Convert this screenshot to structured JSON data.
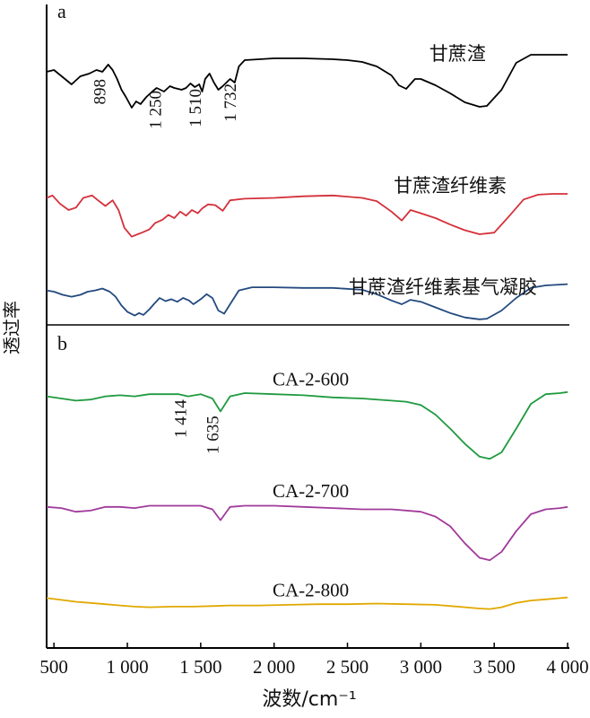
{
  "chart_data": [
    {
      "panel_label": "a",
      "type": "line",
      "ylabel": "透过率",
      "xlim": [
        450,
        4000
      ],
      "series": [
        {
          "name": "甘蔗渣",
          "color": "#000000",
          "points": [
            [
              450,
              0.8
            ],
            [
              500,
              0.82
            ],
            [
              560,
              0.74
            ],
            [
              620,
              0.66
            ],
            [
              680,
              0.75
            ],
            [
              740,
              0.78
            ],
            [
              790,
              0.82
            ],
            [
              830,
              0.8
            ],
            [
              870,
              0.88
            ],
            [
              900,
              0.82
            ],
            [
              930,
              0.72
            ],
            [
              960,
              0.6
            ],
            [
              990,
              0.52
            ],
            [
              1030,
              0.4
            ],
            [
              1060,
              0.47
            ],
            [
              1090,
              0.44
            ],
            [
              1130,
              0.52
            ],
            [
              1170,
              0.58
            ],
            [
              1200,
              0.62
            ],
            [
              1250,
              0.58
            ],
            [
              1290,
              0.64
            ],
            [
              1320,
              0.62
            ],
            [
              1370,
              0.6
            ],
            [
              1400,
              0.62
            ],
            [
              1430,
              0.67
            ],
            [
              1460,
              0.63
            ],
            [
              1490,
              0.66
            ],
            [
              1510,
              0.58
            ],
            [
              1530,
              0.72
            ],
            [
              1560,
              0.78
            ],
            [
              1590,
              0.68
            ],
            [
              1620,
              0.6
            ],
            [
              1650,
              0.64
            ],
            [
              1700,
              0.72
            ],
            [
              1732,
              0.68
            ],
            [
              1760,
              0.86
            ],
            [
              1800,
              0.93
            ],
            [
              2000,
              0.95
            ],
            [
              2200,
              0.95
            ],
            [
              2400,
              0.94
            ],
            [
              2500,
              0.93
            ],
            [
              2600,
              0.91
            ],
            [
              2700,
              0.86
            ],
            [
              2800,
              0.76
            ],
            [
              2850,
              0.65
            ],
            [
              2900,
              0.61
            ],
            [
              2960,
              0.72
            ],
            [
              3000,
              0.72
            ],
            [
              3100,
              0.65
            ],
            [
              3200,
              0.56
            ],
            [
              3300,
              0.46
            ],
            [
              3400,
              0.41
            ],
            [
              3450,
              0.42
            ],
            [
              3550,
              0.6
            ],
            [
              3650,
              0.9
            ],
            [
              3750,
              0.99
            ],
            [
              3900,
              0.99
            ],
            [
              4000,
              0.99
            ]
          ]
        },
        {
          "name": "甘蔗渣纤维素",
          "color": "#d4303a",
          "points": [
            [
              450,
              0.55
            ],
            [
              490,
              0.58
            ],
            [
              540,
              0.48
            ],
            [
              600,
              0.4
            ],
            [
              650,
              0.43
            ],
            [
              700,
              0.55
            ],
            [
              760,
              0.58
            ],
            [
              800,
              0.52
            ],
            [
              850,
              0.45
            ],
            [
              900,
              0.52
            ],
            [
              940,
              0.4
            ],
            [
              980,
              0.18
            ],
            [
              1030,
              0.07
            ],
            [
              1070,
              0.1
            ],
            [
              1100,
              0.12
            ],
            [
              1150,
              0.16
            ],
            [
              1190,
              0.24
            ],
            [
              1240,
              0.28
            ],
            [
              1280,
              0.34
            ],
            [
              1320,
              0.3
            ],
            [
              1360,
              0.38
            ],
            [
              1400,
              0.33
            ],
            [
              1440,
              0.4
            ],
            [
              1480,
              0.36
            ],
            [
              1510,
              0.42
            ],
            [
              1550,
              0.47
            ],
            [
              1600,
              0.46
            ],
            [
              1650,
              0.39
            ],
            [
              1700,
              0.52
            ],
            [
              1800,
              0.54
            ],
            [
              2000,
              0.55
            ],
            [
              2200,
              0.57
            ],
            [
              2400,
              0.58
            ],
            [
              2600,
              0.55
            ],
            [
              2700,
              0.51
            ],
            [
              2800,
              0.38
            ],
            [
              2870,
              0.27
            ],
            [
              2930,
              0.4
            ],
            [
              3000,
              0.36
            ],
            [
              3100,
              0.3
            ],
            [
              3200,
              0.22
            ],
            [
              3300,
              0.15
            ],
            [
              3400,
              0.1
            ],
            [
              3500,
              0.12
            ],
            [
              3600,
              0.32
            ],
            [
              3700,
              0.53
            ],
            [
              3800,
              0.59
            ],
            [
              3900,
              0.6
            ],
            [
              4000,
              0.6
            ]
          ]
        },
        {
          "name": "甘蔗渣纤维素基气凝胶",
          "color": "#23497f",
          "points": [
            [
              450,
              0.52
            ],
            [
              500,
              0.5
            ],
            [
              560,
              0.45
            ],
            [
              620,
              0.42
            ],
            [
              680,
              0.45
            ],
            [
              730,
              0.5
            ],
            [
              780,
              0.52
            ],
            [
              830,
              0.55
            ],
            [
              880,
              0.5
            ],
            [
              920,
              0.42
            ],
            [
              960,
              0.28
            ],
            [
              1000,
              0.18
            ],
            [
              1050,
              0.12
            ],
            [
              1080,
              0.16
            ],
            [
              1110,
              0.13
            ],
            [
              1150,
              0.22
            ],
            [
              1180,
              0.3
            ],
            [
              1220,
              0.4
            ],
            [
              1260,
              0.35
            ],
            [
              1300,
              0.38
            ],
            [
              1340,
              0.34
            ],
            [
              1380,
              0.4
            ],
            [
              1420,
              0.36
            ],
            [
              1450,
              0.3
            ],
            [
              1500,
              0.38
            ],
            [
              1540,
              0.46
            ],
            [
              1580,
              0.4
            ],
            [
              1620,
              0.2
            ],
            [
              1660,
              0.15
            ],
            [
              1700,
              0.3
            ],
            [
              1760,
              0.52
            ],
            [
              1850,
              0.57
            ],
            [
              2000,
              0.57
            ],
            [
              2200,
              0.56
            ],
            [
              2400,
              0.56
            ],
            [
              2600,
              0.53
            ],
            [
              2700,
              0.46
            ],
            [
              2800,
              0.36
            ],
            [
              2870,
              0.3
            ],
            [
              2930,
              0.37
            ],
            [
              3000,
              0.34
            ],
            [
              3100,
              0.25
            ],
            [
              3200,
              0.16
            ],
            [
              3300,
              0.09
            ],
            [
              3400,
              0.06
            ],
            [
              3450,
              0.07
            ],
            [
              3550,
              0.2
            ],
            [
              3650,
              0.4
            ],
            [
              3750,
              0.56
            ],
            [
              3850,
              0.6
            ],
            [
              4000,
              0.62
            ]
          ]
        }
      ],
      "series_labels": [
        {
          "text": "甘蔗渣",
          "x": 3250,
          "y": 0.93
        },
        {
          "text": "甘蔗渣纤维素",
          "x": 3200,
          "y": 0.62
        },
        {
          "text": "甘蔗渣纤维素基气凝胶",
          "x": 3150,
          "y": 0.47
        }
      ],
      "annotations": [
        {
          "text": "898",
          "x": 850,
          "y": 0.72
        },
        {
          "text": "1 250",
          "x": 1230,
          "y": 0.59
        },
        {
          "text": "1 510",
          "x": 1500,
          "y": 0.61
        },
        {
          "text": "1 732",
          "x": 1740,
          "y": 0.67
        }
      ]
    },
    {
      "panel_label": "b",
      "type": "line",
      "xlabel": "波数/cm⁻¹",
      "ylabel": "透过率",
      "xlim": [
        450,
        4000
      ],
      "x_ticks": [
        "500",
        "1 000",
        "1 500",
        "2 000",
        "2 500",
        "3 000",
        "3 500",
        "4 000"
      ],
      "x_tick_values": [
        500,
        1000,
        1500,
        2000,
        2500,
        3000,
        3500,
        4000
      ],
      "series": [
        {
          "name": "CA-2-600",
          "color": "#1f9a3f",
          "points": [
            [
              450,
              0.82
            ],
            [
              550,
              0.8
            ],
            [
              650,
              0.78
            ],
            [
              750,
              0.79
            ],
            [
              850,
              0.82
            ],
            [
              950,
              0.83
            ],
            [
              1050,
              0.82
            ],
            [
              1150,
              0.84
            ],
            [
              1250,
              0.84
            ],
            [
              1350,
              0.84
            ],
            [
              1414,
              0.82
            ],
            [
              1500,
              0.84
            ],
            [
              1580,
              0.8
            ],
            [
              1635,
              0.68
            ],
            [
              1700,
              0.82
            ],
            [
              1800,
              0.85
            ],
            [
              2000,
              0.84
            ],
            [
              2200,
              0.83
            ],
            [
              2400,
              0.81
            ],
            [
              2600,
              0.8
            ],
            [
              2800,
              0.78
            ],
            [
              2900,
              0.77
            ],
            [
              3000,
              0.74
            ],
            [
              3100,
              0.65
            ],
            [
              3200,
              0.52
            ],
            [
              3300,
              0.38
            ],
            [
              3400,
              0.26
            ],
            [
              3470,
              0.24
            ],
            [
              3550,
              0.3
            ],
            [
              3650,
              0.52
            ],
            [
              3750,
              0.75
            ],
            [
              3850,
              0.84
            ],
            [
              3950,
              0.85
            ],
            [
              4000,
              0.86
            ]
          ]
        },
        {
          "name": "CA-2-700",
          "color": "#a03a9b",
          "points": [
            [
              450,
              0.52
            ],
            [
              550,
              0.51
            ],
            [
              650,
              0.48
            ],
            [
              750,
              0.49
            ],
            [
              850,
              0.52
            ],
            [
              950,
              0.52
            ],
            [
              1050,
              0.51
            ],
            [
              1150,
              0.53
            ],
            [
              1250,
              0.53
            ],
            [
              1400,
              0.53
            ],
            [
              1500,
              0.53
            ],
            [
              1580,
              0.5
            ],
            [
              1635,
              0.41
            ],
            [
              1700,
              0.52
            ],
            [
              1800,
              0.53
            ],
            [
              2000,
              0.53
            ],
            [
              2200,
              0.52
            ],
            [
              2400,
              0.51
            ],
            [
              2600,
              0.5
            ],
            [
              2800,
              0.5
            ],
            [
              3000,
              0.48
            ],
            [
              3100,
              0.44
            ],
            [
              3200,
              0.36
            ],
            [
              3300,
              0.22
            ],
            [
              3400,
              0.1
            ],
            [
              3470,
              0.08
            ],
            [
              3550,
              0.15
            ],
            [
              3650,
              0.32
            ],
            [
              3750,
              0.46
            ],
            [
              3850,
              0.5
            ],
            [
              3950,
              0.51
            ],
            [
              4000,
              0.52
            ]
          ]
        },
        {
          "name": "CA-2-800",
          "color": "#e0a800",
          "points": [
            [
              450,
              0.2
            ],
            [
              550,
              0.17
            ],
            [
              650,
              0.14
            ],
            [
              750,
              0.12
            ],
            [
              850,
              0.1
            ],
            [
              950,
              0.08
            ],
            [
              1050,
              0.06
            ],
            [
              1150,
              0.05
            ],
            [
              1300,
              0.06
            ],
            [
              1450,
              0.06
            ],
            [
              1600,
              0.07
            ],
            [
              1700,
              0.08
            ],
            [
              1900,
              0.08
            ],
            [
              2100,
              0.09
            ],
            [
              2300,
              0.1
            ],
            [
              2500,
              0.1
            ],
            [
              2700,
              0.11
            ],
            [
              2900,
              0.1
            ],
            [
              3100,
              0.09
            ],
            [
              3250,
              0.06
            ],
            [
              3400,
              0.03
            ],
            [
              3470,
              0.02
            ],
            [
              3550,
              0.05
            ],
            [
              3650,
              0.12
            ],
            [
              3750,
              0.16
            ],
            [
              3850,
              0.18
            ],
            [
              3950,
              0.2
            ],
            [
              4000,
              0.21
            ]
          ]
        }
      ],
      "series_labels": [
        {
          "text": "CA-2-600",
          "x": 2250,
          "y": 0.92
        },
        {
          "text": "CA-2-700",
          "x": 2250,
          "y": 0.6
        },
        {
          "text": "CA-2-800",
          "x": 2250,
          "y": 0.23
        }
      ],
      "annotations": [
        {
          "text": "1 414",
          "x": 1400,
          "y": 0.79
        },
        {
          "text": "1 635",
          "x": 1620,
          "y": 0.64
        }
      ]
    }
  ]
}
